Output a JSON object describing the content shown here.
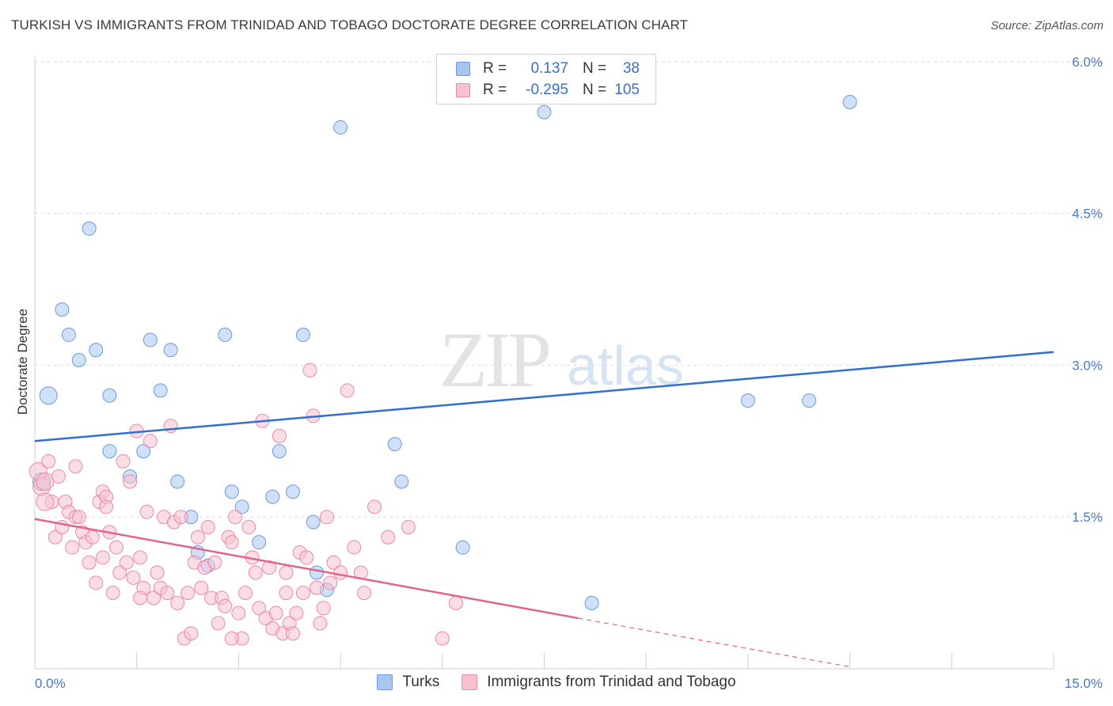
{
  "header": {
    "title": "TURKISH VS IMMIGRANTS FROM TRINIDAD AND TOBAGO DOCTORATE DEGREE CORRELATION CHART",
    "source": "Source: ZipAtlas.com"
  },
  "watermark": {
    "zip": "ZIP",
    "atlas": "atlas"
  },
  "legend": {
    "rows": [
      {
        "r_label": "R =",
        "r_value": "0.137",
        "n_label": "N =",
        "n_value": "38",
        "color": "#a9c6ef",
        "border": "#6c9ae0"
      },
      {
        "r_label": "R =",
        "r_value": "-0.295",
        "n_label": "N =",
        "n_value": "105",
        "color": "#f7c1d0",
        "border": "#ea8aa6"
      }
    ]
  },
  "bottom_legend": {
    "items": [
      {
        "label": "Turks",
        "color": "#a9c6ef",
        "border": "#6c9ae0"
      },
      {
        "label": "Immigrants from Trinidad and Tobago",
        "color": "#f7c1d0",
        "border": "#ea8aa6"
      }
    ]
  },
  "chart_data": {
    "type": "scatter",
    "title": "TURKISH VS IMMIGRANTS FROM TRINIDAD AND TOBAGO DOCTORATE DEGREE CORRELATION CHART",
    "xlabel": "",
    "ylabel": "Doctorate Degree",
    "xlim": [
      0,
      15
    ],
    "ylim": [
      0,
      6.2
    ],
    "x_tick_labels": [
      "0.0%",
      "15.0%"
    ],
    "y_ticks": [
      1.5,
      3.0,
      4.5,
      6.0
    ],
    "y_tick_labels": [
      "1.5%",
      "3.0%",
      "4.5%",
      "6.0%"
    ],
    "grid": true,
    "legend_position": "top-center",
    "series": [
      {
        "name": "Turks",
        "color": "#a9c6ef",
        "stroke": "#6c9ae0",
        "trend": {
          "x": [
            0,
            15
          ],
          "y": [
            2.25,
            3.13
          ],
          "color": "#2f6fcf"
        },
        "points": [
          [
            0.1,
            1.85
          ],
          [
            0.2,
            2.7
          ],
          [
            0.4,
            3.55
          ],
          [
            0.5,
            3.3
          ],
          [
            0.65,
            3.05
          ],
          [
            0.8,
            4.35
          ],
          [
            0.9,
            3.15
          ],
          [
            1.1,
            2.7
          ],
          [
            1.1,
            2.15
          ],
          [
            1.4,
            1.9
          ],
          [
            1.6,
            2.15
          ],
          [
            1.7,
            3.25
          ],
          [
            1.85,
            2.75
          ],
          [
            2.0,
            3.15
          ],
          [
            2.1,
            1.85
          ],
          [
            2.3,
            1.5
          ],
          [
            2.4,
            1.15
          ],
          [
            2.55,
            1.02
          ],
          [
            2.8,
            3.3
          ],
          [
            2.9,
            1.75
          ],
          [
            3.05,
            1.6
          ],
          [
            3.3,
            1.25
          ],
          [
            3.5,
            1.7
          ],
          [
            3.6,
            2.15
          ],
          [
            3.8,
            1.75
          ],
          [
            3.95,
            3.3
          ],
          [
            4.1,
            1.45
          ],
          [
            4.15,
            0.95
          ],
          [
            4.3,
            0.78
          ],
          [
            4.5,
            5.35
          ],
          [
            5.3,
            2.22
          ],
          [
            5.4,
            1.85
          ],
          [
            6.3,
            1.2
          ],
          [
            7.5,
            5.5
          ],
          [
            8.2,
            0.65
          ],
          [
            10.5,
            2.65
          ],
          [
            11.4,
            2.65
          ],
          [
            12.0,
            5.6
          ]
        ]
      },
      {
        "name": "Immigrants from Trinidad and Tobago",
        "color": "#f7c1d0",
        "stroke": "#ea8aa6",
        "trend": {
          "x": [
            0,
            8.0
          ],
          "y": [
            1.48,
            0.5
          ],
          "color": "#e0648c",
          "dashed_to": [
            12.0,
            0.02
          ]
        },
        "points": [
          [
            0.05,
            1.95
          ],
          [
            0.1,
            1.8
          ],
          [
            0.15,
            1.85
          ],
          [
            0.2,
            2.05
          ],
          [
            0.25,
            1.65
          ],
          [
            0.3,
            1.3
          ],
          [
            0.35,
            1.9
          ],
          [
            0.4,
            1.4
          ],
          [
            0.45,
            1.65
          ],
          [
            0.5,
            1.55
          ],
          [
            0.55,
            1.2
          ],
          [
            0.6,
            1.5
          ],
          [
            0.6,
            2.0
          ],
          [
            0.7,
            1.35
          ],
          [
            0.75,
            1.25
          ],
          [
            0.8,
            1.05
          ],
          [
            0.85,
            1.3
          ],
          [
            0.9,
            0.85
          ],
          [
            0.95,
            1.65
          ],
          [
            1.0,
            1.1
          ],
          [
            1.0,
            1.75
          ],
          [
            1.05,
            1.7
          ],
          [
            1.1,
            1.35
          ],
          [
            1.15,
            0.75
          ],
          [
            1.2,
            1.2
          ],
          [
            1.25,
            0.95
          ],
          [
            1.3,
            2.05
          ],
          [
            1.35,
            1.05
          ],
          [
            1.4,
            1.85
          ],
          [
            1.45,
            0.9
          ],
          [
            1.5,
            2.35
          ],
          [
            1.55,
            1.1
          ],
          [
            1.6,
            0.8
          ],
          [
            1.65,
            1.55
          ],
          [
            1.7,
            2.25
          ],
          [
            1.75,
            0.7
          ],
          [
            1.8,
            0.95
          ],
          [
            1.85,
            0.8
          ],
          [
            1.9,
            1.5
          ],
          [
            1.95,
            0.75
          ],
          [
            2.0,
            2.4
          ],
          [
            2.05,
            1.45
          ],
          [
            2.1,
            0.65
          ],
          [
            2.15,
            1.5
          ],
          [
            2.2,
            0.3
          ],
          [
            2.25,
            0.75
          ],
          [
            2.3,
            0.35
          ],
          [
            2.35,
            1.05
          ],
          [
            2.4,
            1.3
          ],
          [
            2.45,
            0.8
          ],
          [
            2.5,
            1.0
          ],
          [
            2.55,
            1.4
          ],
          [
            2.6,
            0.7
          ],
          [
            2.65,
            1.05
          ],
          [
            2.7,
            0.45
          ],
          [
            2.75,
            0.7
          ],
          [
            2.8,
            0.62
          ],
          [
            2.85,
            1.3
          ],
          [
            2.9,
            1.25
          ],
          [
            2.95,
            1.5
          ],
          [
            3.0,
            0.55
          ],
          [
            3.05,
            0.3
          ],
          [
            3.1,
            0.75
          ],
          [
            3.15,
            1.4
          ],
          [
            3.2,
            1.1
          ],
          [
            3.25,
            0.95
          ],
          [
            3.3,
            0.6
          ],
          [
            3.35,
            2.45
          ],
          [
            3.4,
            0.5
          ],
          [
            3.45,
            1.0
          ],
          [
            3.5,
            0.4
          ],
          [
            3.55,
            0.55
          ],
          [
            3.6,
            2.3
          ],
          [
            3.65,
            0.35
          ],
          [
            3.7,
            0.95
          ],
          [
            3.75,
            0.45
          ],
          [
            3.8,
            0.35
          ],
          [
            3.85,
            0.55
          ],
          [
            3.9,
            1.15
          ],
          [
            3.95,
            0.75
          ],
          [
            4.0,
            1.1
          ],
          [
            4.05,
            2.95
          ],
          [
            4.1,
            2.5
          ],
          [
            4.15,
            0.8
          ],
          [
            4.2,
            0.45
          ],
          [
            4.25,
            0.6
          ],
          [
            4.3,
            1.5
          ],
          [
            4.35,
            0.85
          ],
          [
            4.4,
            1.05
          ],
          [
            4.5,
            0.95
          ],
          [
            4.6,
            2.75
          ],
          [
            4.7,
            1.2
          ],
          [
            4.8,
            0.95
          ],
          [
            4.85,
            0.75
          ],
          [
            5.0,
            1.6
          ],
          [
            5.2,
            1.3
          ],
          [
            5.5,
            1.4
          ],
          [
            6.0,
            0.3
          ],
          [
            6.2,
            0.65
          ],
          [
            0.15,
            1.65
          ],
          [
            0.65,
            1.5
          ],
          [
            1.05,
            1.6
          ],
          [
            1.55,
            0.7
          ],
          [
            2.9,
            0.3
          ],
          [
            3.7,
            0.75
          ]
        ]
      }
    ]
  }
}
